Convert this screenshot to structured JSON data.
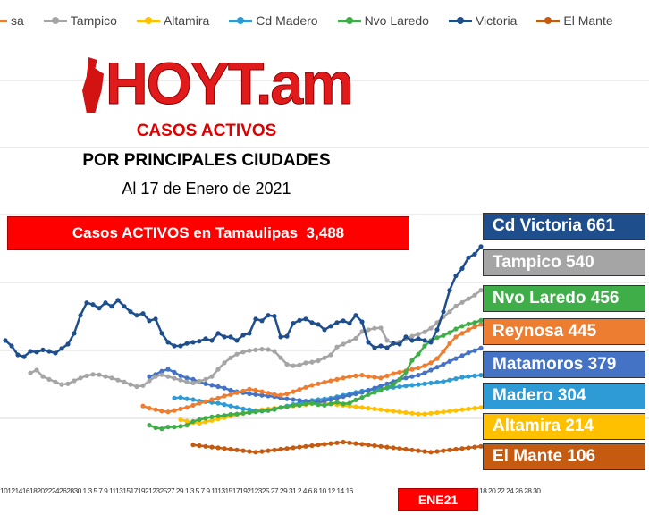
{
  "legend": [
    {
      "name": "sa",
      "color": "#ed7d31"
    },
    {
      "name": "Tampico",
      "color": "#a5a5a5"
    },
    {
      "name": "Altamira",
      "color": "#ffc000"
    },
    {
      "name": "Cd Madero",
      "color": "#2e9bd6"
    },
    {
      "name": "Nvo Laredo",
      "color": "#3fae49"
    },
    {
      "name": "Victoria",
      "color": "#1f4e8c"
    },
    {
      "name": "El Mante",
      "color": "#c55a11"
    }
  ],
  "logo": "HOYT.am",
  "title": "CASOS ACTIVOS",
  "subtitle": "POR PRINCIPALES CIUDADES",
  "date_line": "Al 17 de Enero de 2021",
  "total_label": "Casos ACTIVOS en Tamaulipas  3,488",
  "city_labels": [
    {
      "text": "Cd Victoria 661",
      "color": "#1f4e8c"
    },
    {
      "text": "Tampico 540",
      "color": "#a5a5a5"
    },
    {
      "text": "Nvo Laredo 456",
      "color": "#3fae49"
    },
    {
      "text": "Reynosa 445",
      "color": "#ed7d31"
    },
    {
      "text": "Matamoros 379",
      "color": "#4472c4"
    },
    {
      "text": "Madero 304",
      "color": "#2e9bd6"
    },
    {
      "text": "Altamira 214",
      "color": "#ffc000"
    },
    {
      "text": "El Mante 106",
      "color": "#c55a11"
    }
  ],
  "month_label": "ENE21",
  "xaxis_ticks_text": "1012141618202224262830 1  3  5  7  9  111315171921232527 29  1  3  5  7  9  1113151719212325 27 29 31 2 4 6 8 10 12 14 16",
  "xaxis_ticks_text2": "18 20 22 24 26 28 30",
  "chart_data": {
    "type": "line",
    "ylim": [
      0,
      750
    ],
    "grid": true,
    "series": [
      {
        "name": "Victoria",
        "color": "#1f4e8c",
        "values": [
          400,
          385,
          360,
          355,
          370,
          368,
          374,
          370,
          365,
          378,
          390,
          420,
          470,
          505,
          500,
          490,
          505,
          495,
          512,
          495,
          480,
          470,
          475,
          455,
          460,
          420,
          395,
          385,
          385,
          392,
          395,
          398,
          405,
          400,
          420,
          410,
          410,
          400,
          415,
          420,
          460,
          455,
          470,
          468,
          410,
          412,
          448,
          456,
          460,
          450,
          445,
          430,
          440,
          450,
          455,
          448,
          470,
          452,
          395,
          380,
          385,
          380,
          392,
          390,
          410,
          400,
          405,
          400,
          395,
          430,
          480,
          540,
          580,
          600,
          630,
          640,
          661
        ]
      },
      {
        "name": "Tampico",
        "color": "#a5a5a5",
        "values": [
          310,
          318,
          300,
          292,
          285,
          278,
          280,
          288,
          296,
          302,
          306,
          305,
          300,
          296,
          290,
          285,
          278,
          272,
          275,
          288,
          300,
          305,
          300,
          295,
          290,
          285,
          282,
          287,
          292,
          300,
          320,
          338,
          352,
          362,
          368,
          372,
          374,
          376,
          375,
          370,
          352,
          334,
          330,
          332,
          338,
          340,
          344,
          352,
          360,
          382,
          390,
          398,
          406,
          425,
          430,
          434,
          435,
          400,
          392,
          396,
          404,
          412,
          418,
          424,
          434,
          450,
          466,
          480,
          496,
          506,
          516,
          526,
          540
        ]
      },
      {
        "name": "Nvo Laredo",
        "color": "#3fae49",
        "values": [
          165,
          158,
          155,
          160,
          160,
          162,
          165,
          175,
          180,
          184,
          188,
          190,
          192,
          195,
          196,
          198,
          200,
          202,
          205,
          206,
          208,
          214,
          216,
          220,
          220,
          224,
          226,
          222,
          220,
          224,
          228,
          224,
          226,
          235,
          242,
          250,
          256,
          262,
          270,
          278,
          292,
          312,
          345,
          362,
          385,
          400,
          408,
          414,
          422,
          432,
          440,
          446,
          450,
          456
        ]
      },
      {
        "name": "Reynosa",
        "color": "#ed7d31",
        "values": [
          218,
          212,
          208,
          204,
          202,
          206,
          210,
          214,
          220,
          226,
          230,
          236,
          240,
          246,
          250,
          255,
          260,
          265,
          262,
          258,
          254,
          250,
          248,
          252,
          258,
          264,
          270,
          276,
          280,
          284,
          288,
          292,
          296,
          300,
          302,
          304,
          300,
          298,
          296,
          302,
          308,
          312,
          316,
          320,
          324,
          330,
          338,
          350,
          370,
          392,
          410,
          420,
          430,
          438,
          445
        ]
      },
      {
        "name": "Matamoros",
        "color": "#4472c4",
        "values": [
          300,
          306,
          315,
          320,
          312,
          302,
          296,
          292,
          285,
          280,
          276,
          272,
          268,
          262,
          258,
          255,
          252,
          250,
          248,
          246,
          244,
          240,
          238,
          236,
          234,
          232,
          230,
          228,
          232,
          236,
          240,
          244,
          248,
          252,
          256,
          262,
          268,
          274,
          280,
          286,
          292,
          296,
          300,
          304,
          310,
          318,
          326,
          334,
          342,
          350,
          358,
          366,
          372,
          379
        ]
      },
      {
        "name": "Madero",
        "color": "#2e9bd6",
        "values": [
          240,
          242,
          238,
          236,
          232,
          230,
          228,
          226,
          222,
          218,
          214,
          210,
          208,
          205,
          204,
          206,
          210,
          214,
          218,
          222,
          226,
          230,
          234,
          236,
          238,
          240,
          244,
          248,
          252,
          256,
          260,
          262,
          264,
          266,
          268,
          270,
          272,
          274,
          276,
          278,
          280,
          282,
          284,
          286,
          290,
          294,
          298,
          300,
          302,
          304
        ]
      },
      {
        "name": "Altamira",
        "color": "#ffc000",
        "values": [
          180,
          176,
          172,
          170,
          174,
          178,
          182,
          186,
          190,
          194,
          198,
          202,
          206,
          208,
          210,
          212,
          214,
          216,
          218,
          220,
          222,
          224,
          226,
          226,
          224,
          222,
          220,
          218,
          216,
          214,
          212,
          210,
          208,
          206,
          204,
          202,
          200,
          198,
          196,
          196,
          198,
          200,
          202,
          204,
          206,
          208,
          210,
          212,
          214
        ]
      },
      {
        "name": "El Mante",
        "color": "#c55a11",
        "values": [
          110,
          108,
          106,
          104,
          102,
          100,
          98,
          96,
          94,
          92,
          90,
          92,
          94,
          96,
          98,
          100,
          102,
          104,
          106,
          108,
          110,
          112,
          114,
          116,
          118,
          116,
          114,
          112,
          110,
          108,
          106,
          104,
          102,
          100,
          98,
          96,
          94,
          92,
          90,
          92,
          94,
          96,
          98,
          100,
          102,
          104,
          106
        ]
      }
    ]
  }
}
